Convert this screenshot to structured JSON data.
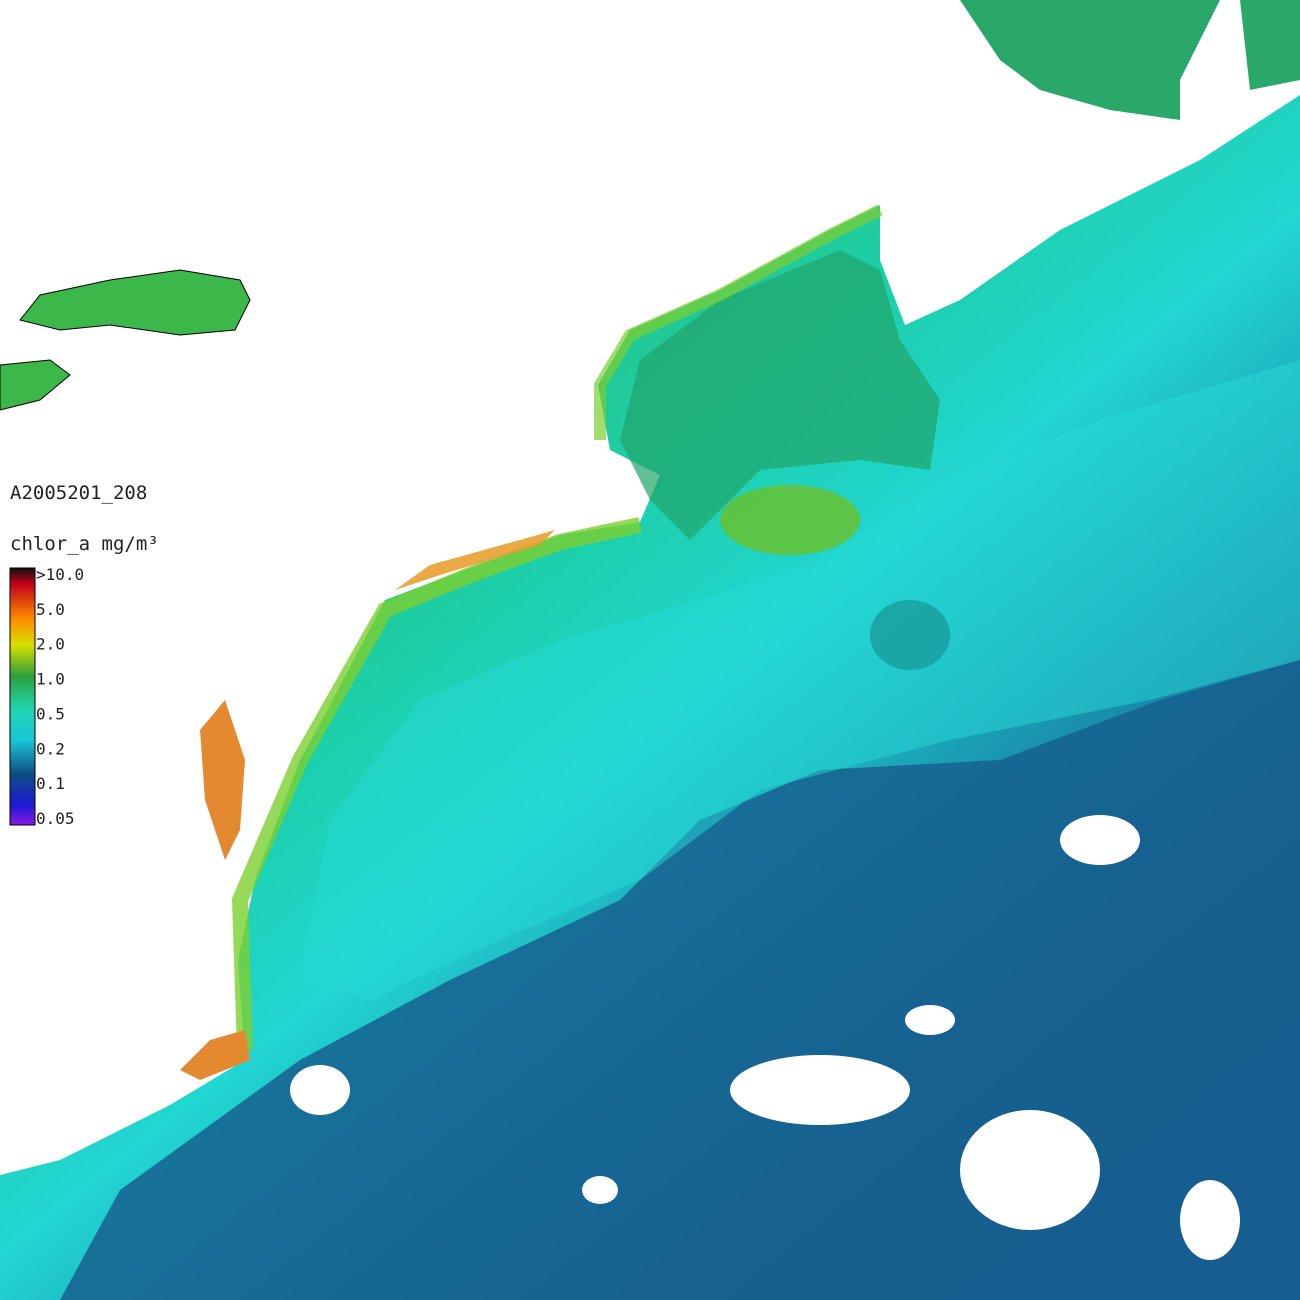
{
  "map": {
    "title": "A2005201_208",
    "unit_label": "chlor_a mg/m³",
    "legend": {
      "labels": [
        ">10.0",
        "5.0",
        "2.0",
        "1.0",
        "0.5",
        "0.2",
        "0.1",
        "0.05"
      ]
    }
  }
}
